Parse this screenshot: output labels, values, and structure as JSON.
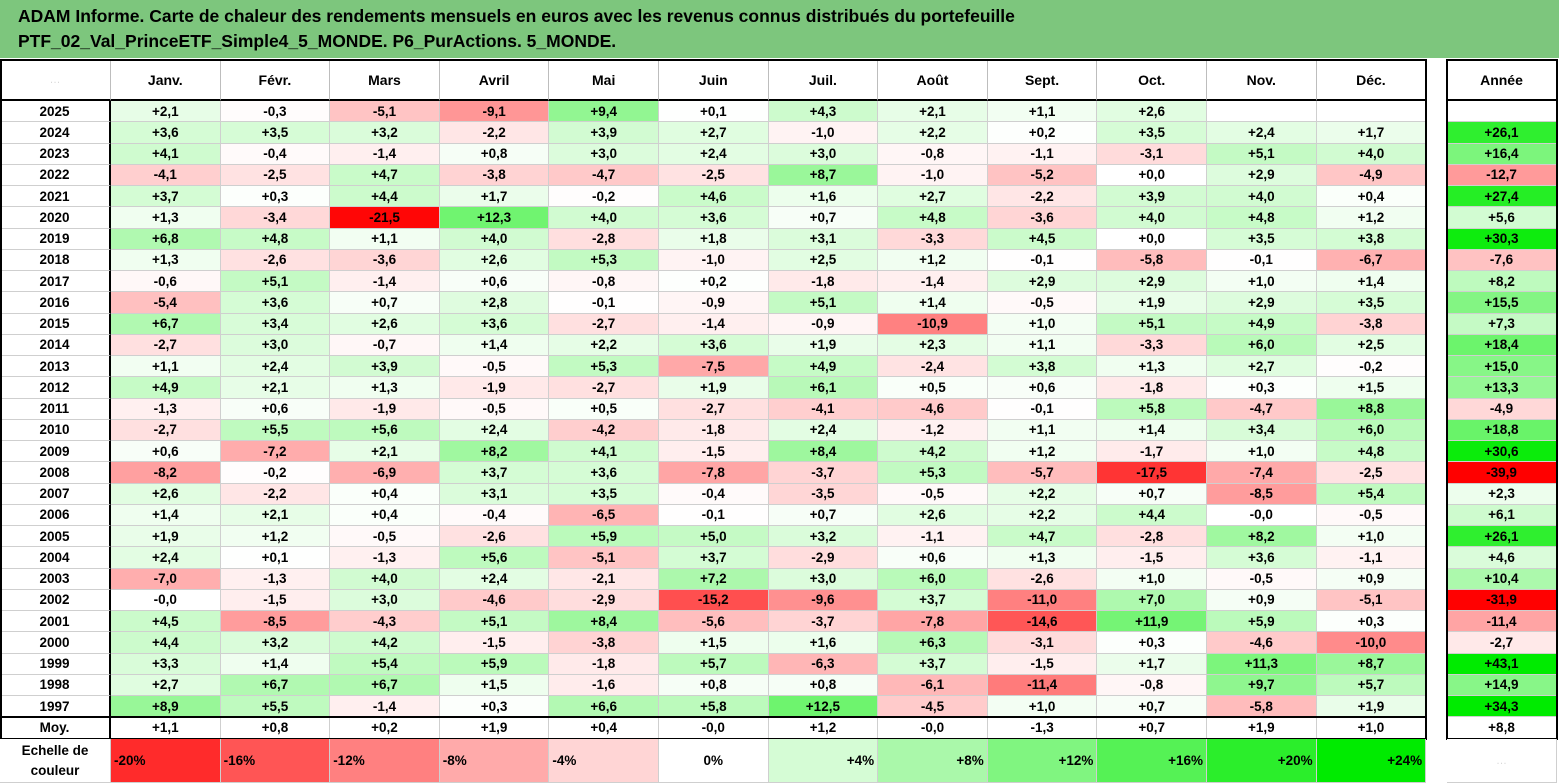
{
  "title": {
    "line1": "ADAM Informe. Carte de chaleur des rendements mensuels en euros avec les revenus connus distribués du portefeuille",
    "line2": "PTF_02_Val_PrinceETF_Simple4_5_MONDE. P6_PurActions. 5_MONDE."
  },
  "corner_text": "…",
  "headers": {
    "months": [
      "Janv.",
      "Févr.",
      "Mars",
      "Avril",
      "Mai",
      "Juin",
      "Juil.",
      "Août",
      "Sept.",
      "Oct.",
      "Nov.",
      "Déc."
    ],
    "year": "Année"
  },
  "rows": [
    {
      "label": "2025",
      "months": [
        "+2,1",
        "-0,3",
        "-5,1",
        "-9,1",
        "+9,4",
        "+0,1",
        "+4,3",
        "+2,1",
        "+1,1",
        "+2,6",
        "",
        ""
      ],
      "year": ""
    },
    {
      "label": "2024",
      "months": [
        "+3,6",
        "+3,5",
        "+3,2",
        "-2,2",
        "+3,9",
        "+2,7",
        "-1,0",
        "+2,2",
        "+0,2",
        "+3,5",
        "+2,4",
        "+1,7"
      ],
      "year": "+26,1"
    },
    {
      "label": "2023",
      "months": [
        "+4,1",
        "-0,4",
        "-1,4",
        "+0,8",
        "+3,0",
        "+2,4",
        "+3,0",
        "-0,8",
        "-1,1",
        "-3,1",
        "+5,1",
        "+4,0"
      ],
      "year": "+16,4"
    },
    {
      "label": "2022",
      "months": [
        "-4,1",
        "-2,5",
        "+4,7",
        "-3,8",
        "-4,7",
        "-2,5",
        "+8,7",
        "-1,0",
        "-5,2",
        "+0,0",
        "+2,9",
        "-4,9"
      ],
      "year": "-12,7"
    },
    {
      "label": "2021",
      "months": [
        "+3,7",
        "+0,3",
        "+4,4",
        "+1,7",
        "-0,2",
        "+4,6",
        "+1,6",
        "+2,7",
        "-2,2",
        "+3,9",
        "+4,0",
        "+0,4"
      ],
      "year": "+27,4"
    },
    {
      "label": "2020",
      "months": [
        "+1,3",
        "-3,4",
        "-21,5",
        "+12,3",
        "+4,0",
        "+3,6",
        "+0,7",
        "+4,8",
        "-3,6",
        "+4,0",
        "+4,8",
        "+1,2"
      ],
      "year": "+5,6"
    },
    {
      "label": "2019",
      "months": [
        "+6,8",
        "+4,8",
        "+1,1",
        "+4,0",
        "-2,8",
        "+1,8",
        "+3,1",
        "-3,3",
        "+4,5",
        "+0,0",
        "+3,5",
        "+3,8"
      ],
      "year": "+30,3"
    },
    {
      "label": "2018",
      "months": [
        "+1,3",
        "-2,6",
        "-3,6",
        "+2,6",
        "+5,3",
        "-1,0",
        "+2,5",
        "+1,2",
        "-0,1",
        "-5,8",
        "-0,1",
        "-6,7"
      ],
      "year": "-7,6"
    },
    {
      "label": "2017",
      "months": [
        "-0,6",
        "+5,1",
        "-1,4",
        "+0,6",
        "-0,8",
        "+0,2",
        "-1,8",
        "-1,4",
        "+2,9",
        "+2,9",
        "+1,0",
        "+1,4"
      ],
      "year": "+8,2"
    },
    {
      "label": "2016",
      "months": [
        "-5,4",
        "+3,6",
        "+0,7",
        "+2,8",
        "-0,1",
        "-0,9",
        "+5,1",
        "+1,4",
        "-0,5",
        "+1,9",
        "+2,9",
        "+3,5"
      ],
      "year": "+15,5"
    },
    {
      "label": "2015",
      "months": [
        "+6,7",
        "+3,4",
        "+2,6",
        "+3,6",
        "-2,7",
        "-1,4",
        "-0,9",
        "-10,9",
        "+1,0",
        "+5,1",
        "+4,9",
        "-3,8"
      ],
      "year": "+7,3"
    },
    {
      "label": "2014",
      "months": [
        "-2,7",
        "+3,0",
        "-0,7",
        "+1,4",
        "+2,2",
        "+3,6",
        "+1,9",
        "+2,3",
        "+1,1",
        "-3,3",
        "+6,0",
        "+2,5"
      ],
      "year": "+18,4"
    },
    {
      "label": "2013",
      "months": [
        "+1,1",
        "+2,4",
        "+3,9",
        "-0,5",
        "+5,3",
        "-7,5",
        "+4,9",
        "-2,4",
        "+3,8",
        "+1,3",
        "+2,7",
        "-0,2"
      ],
      "year": "+15,0"
    },
    {
      "label": "2012",
      "months": [
        "+4,9",
        "+2,1",
        "+1,3",
        "-1,9",
        "-2,7",
        "+1,9",
        "+6,1",
        "+0,5",
        "+0,6",
        "-1,8",
        "+0,3",
        "+1,5"
      ],
      "year": "+13,3"
    },
    {
      "label": "2011",
      "months": [
        "-1,3",
        "+0,6",
        "-1,9",
        "-0,5",
        "+0,5",
        "-2,7",
        "-4,1",
        "-4,6",
        "-0,1",
        "+5,8",
        "-4,7",
        "+8,8"
      ],
      "year": "-4,9"
    },
    {
      "label": "2010",
      "months": [
        "-2,7",
        "+5,5",
        "+5,6",
        "+2,4",
        "-4,2",
        "-1,8",
        "+2,4",
        "-1,2",
        "+1,1",
        "+1,4",
        "+3,4",
        "+6,0"
      ],
      "year": "+18,8"
    },
    {
      "label": "2009",
      "months": [
        "+0,6",
        "-7,2",
        "+2,1",
        "+8,2",
        "+4,1",
        "-1,5",
        "+8,4",
        "+4,2",
        "+1,2",
        "-1,7",
        "+1,0",
        "+4,8"
      ],
      "year": "+30,6"
    },
    {
      "label": "2008",
      "months": [
        "-8,2",
        "-0,2",
        "-6,9",
        "+3,7",
        "+3,6",
        "-7,8",
        "-3,7",
        "+5,3",
        "-5,7",
        "-17,5",
        "-7,4",
        "-2,5"
      ],
      "year": "-39,9"
    },
    {
      "label": "2007",
      "months": [
        "+2,6",
        "-2,2",
        "+0,4",
        "+3,1",
        "+3,5",
        "-0,4",
        "-3,5",
        "-0,5",
        "+2,2",
        "+0,7",
        "-8,5",
        "+5,4"
      ],
      "year": "+2,3"
    },
    {
      "label": "2006",
      "months": [
        "+1,4",
        "+2,1",
        "+0,4",
        "-0,4",
        "-6,5",
        "-0,1",
        "+0,7",
        "+2,6",
        "+2,2",
        "+4,4",
        "-0,0",
        "-0,5"
      ],
      "year": "+6,1"
    },
    {
      "label": "2005",
      "months": [
        "+1,9",
        "+1,2",
        "-0,5",
        "-2,6",
        "+5,9",
        "+5,0",
        "+3,2",
        "-1,1",
        "+4,7",
        "-2,8",
        "+8,2",
        "+1,0"
      ],
      "year": "+26,1"
    },
    {
      "label": "2004",
      "months": [
        "+2,4",
        "+0,1",
        "-1,3",
        "+5,6",
        "-5,1",
        "+3,7",
        "-2,9",
        "+0,6",
        "+1,3",
        "-1,5",
        "+3,6",
        "-1,1"
      ],
      "year": "+4,6"
    },
    {
      "label": "2003",
      "months": [
        "-7,0",
        "-1,3",
        "+4,0",
        "+2,4",
        "-2,1",
        "+7,2",
        "+3,0",
        "+6,0",
        "-2,6",
        "+1,0",
        "-0,5",
        "+0,9"
      ],
      "year": "+10,4"
    },
    {
      "label": "2002",
      "months": [
        "-0,0",
        "-1,5",
        "+3,0",
        "-4,6",
        "-2,9",
        "-15,2",
        "-9,6",
        "+3,7",
        "-11,0",
        "+7,0",
        "+0,9",
        "-5,1"
      ],
      "year": "-31,9"
    },
    {
      "label": "2001",
      "months": [
        "+4,5",
        "-8,5",
        "-4,3",
        "+5,1",
        "+8,4",
        "-5,6",
        "-3,7",
        "-7,8",
        "-14,6",
        "+11,9",
        "+5,9",
        "+0,3"
      ],
      "year": "-11,4"
    },
    {
      "label": "2000",
      "months": [
        "+4,4",
        "+3,2",
        "+4,2",
        "-1,5",
        "-3,8",
        "+1,5",
        "+1,6",
        "+6,3",
        "-3,1",
        "+0,3",
        "-4,6",
        "-10,0"
      ],
      "year": "-2,7"
    },
    {
      "label": "1999",
      "months": [
        "+3,3",
        "+1,4",
        "+5,4",
        "+5,9",
        "-1,8",
        "+5,7",
        "-6,3",
        "+3,7",
        "-1,5",
        "+1,7",
        "+11,3",
        "+8,7"
      ],
      "year": "+43,1"
    },
    {
      "label": "1998",
      "months": [
        "+2,7",
        "+6,7",
        "+6,7",
        "+1,5",
        "-1,6",
        "+0,8",
        "+0,8",
        "-6,1",
        "-11,4",
        "-0,8",
        "+9,7",
        "+5,7"
      ],
      "year": "+14,9"
    },
    {
      "label": "1997",
      "months": [
        "+8,9",
        "+5,5",
        "-1,4",
        "+0,3",
        "+6,6",
        "+5,8",
        "+12,5",
        "-4,5",
        "+1,0",
        "+0,7",
        "-5,8",
        "+1,9"
      ],
      "year": "+34,3"
    }
  ],
  "average": {
    "label": "Moy.",
    "months": [
      "+1,1",
      "+0,8",
      "+0,2",
      "+1,9",
      "+0,4",
      "-0,0",
      "+1,2",
      "-0,0",
      "-1,3",
      "+0,7",
      "+1,9",
      "+1,0"
    ],
    "year": "+8,8"
  },
  "legend": {
    "label": "Echelle de couleur",
    "steps": [
      "-20%",
      "-16%",
      "-12%",
      "-8%",
      "-4%",
      "0%",
      "+4%",
      "+8%",
      "+12%",
      "+16%",
      "+20%",
      "+24%"
    ],
    "corner_text": "…"
  },
  "colors": {
    "title_bg": "#7dc67d",
    "negative_max": "#ff0000",
    "positive_max": "#00e000",
    "neutral": "#ffffff"
  }
}
